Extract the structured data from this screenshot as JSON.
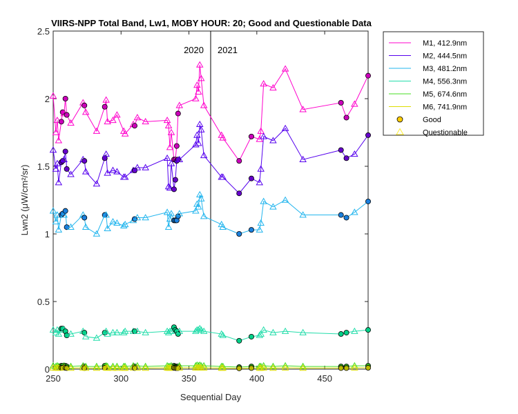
{
  "chart_data": {
    "type": "line",
    "title": "VIIRS-NPP Total Band, Lw1, MOBY HOUR: 20;  Good and Questionable Data",
    "xlabel": "Sequential Day",
    "ylabel": "Lwn2 (μW/cm²/sr)",
    "xlim": [
      250,
      482
    ],
    "ylim": [
      0,
      2.5
    ],
    "xticks": [
      250,
      300,
      350,
      400,
      450
    ],
    "yticks": [
      0,
      0.5,
      1,
      1.5,
      2,
      2.5
    ],
    "grid": false,
    "legend_position": "outside-top-right",
    "year_divider": {
      "x": 366,
      "labels": [
        "2020",
        "2021"
      ]
    },
    "x": [
      250,
      252,
      253,
      254,
      256,
      257,
      258,
      259,
      260,
      263,
      272,
      273,
      274,
      282,
      288,
      289,
      290,
      294,
      297,
      302,
      303,
      309,
      310,
      312,
      318,
      334,
      335,
      336,
      337,
      339,
      340,
      341,
      342,
      343,
      355,
      356,
      357,
      358,
      359,
      361,
      374,
      375,
      387,
      396,
      402,
      403,
      405,
      412,
      421,
      434,
      462,
      466,
      472,
      482
    ],
    "quality": [
      "Q",
      "Q",
      "Q",
      "Q",
      "G",
      "G",
      "Q",
      "G",
      "G",
      "Q",
      "Q",
      "G",
      "Q",
      "Q",
      "G",
      "Q",
      "Q",
      "Q",
      "Q",
      "Q",
      "Q",
      "Q",
      "G",
      "Q",
      "Q",
      "Q",
      "Q",
      "Q",
      "Q",
      "G",
      "G",
      "G",
      "G",
      "Q",
      "Q",
      "Q",
      "Q",
      "Q",
      "Q",
      "Q",
      "Q",
      "Q",
      "G",
      "G",
      "Q",
      "Q",
      "Q",
      "Q",
      "Q",
      "Q",
      "G",
      "G",
      "Q",
      "G"
    ],
    "series": [
      {
        "name": "M1, 412.9nm",
        "color": "#ff00cc",
        "good_color": "#cc00bb",
        "values": [
          2.02,
          1.75,
          1.84,
          1.69,
          1.83,
          1.9,
          1.89,
          2.0,
          1.88,
          1.82,
          1.97,
          1.95,
          1.9,
          1.76,
          1.94,
          1.99,
          1.83,
          1.84,
          1.88,
          1.76,
          1.74,
          1.81,
          1.8,
          1.86,
          1.83,
          1.84,
          1.8,
          1.64,
          1.75,
          1.55,
          1.55,
          1.65,
          1.89,
          1.95,
          2.0,
          2.1,
          2.05,
          2.25,
          2.15,
          1.95,
          1.73,
          1.71,
          1.54,
          1.72,
          1.7,
          1.76,
          2.11,
          2.08,
          2.22,
          1.92,
          1.97,
          1.86,
          1.96,
          2.17
        ]
      },
      {
        "name": "M2, 444.5nm",
        "color": "#5500ee",
        "good_color": "#6600cc",
        "values": [
          1.62,
          1.48,
          1.52,
          1.38,
          1.53,
          1.54,
          1.55,
          1.61,
          1.48,
          1.44,
          1.55,
          1.54,
          1.46,
          1.37,
          1.56,
          1.59,
          1.45,
          1.47,
          1.46,
          1.42,
          1.42,
          1.47,
          1.47,
          1.49,
          1.49,
          1.56,
          1.35,
          1.34,
          1.52,
          1.33,
          1.4,
          1.54,
          1.55,
          1.55,
          1.66,
          1.73,
          1.67,
          1.81,
          1.77,
          1.58,
          1.42,
          1.42,
          1.3,
          1.41,
          1.38,
          1.48,
          1.72,
          1.69,
          1.78,
          1.55,
          1.62,
          1.56,
          1.59,
          1.73
        ]
      },
      {
        "name": "M3, 481.2nm",
        "color": "#22b5ee",
        "good_color": "#1a7fdd",
        "values": [
          1.17,
          1.09,
          1.14,
          1.03,
          1.14,
          1.15,
          1.14,
          1.17,
          1.05,
          1.05,
          1.14,
          1.12,
          1.05,
          1.0,
          1.14,
          1.14,
          1.04,
          1.09,
          1.08,
          1.06,
          1.07,
          1.1,
          1.11,
          1.12,
          1.12,
          1.16,
          1.05,
          1.11,
          1.15,
          1.1,
          1.1,
          1.1,
          1.13,
          1.15,
          1.17,
          1.22,
          1.2,
          1.29,
          1.26,
          1.13,
          1.07,
          1.05,
          1.0,
          1.03,
          1.03,
          1.08,
          1.24,
          1.2,
          1.25,
          1.14,
          1.14,
          1.12,
          1.16,
          1.24
        ]
      },
      {
        "name": "M4, 556.3nm",
        "color": "#22ddaa",
        "good_color": "#00d188",
        "values": [
          0.29,
          0.27,
          0.29,
          0.26,
          0.3,
          0.3,
          0.29,
          0.28,
          0.25,
          0.26,
          0.28,
          0.27,
          0.24,
          0.23,
          0.27,
          0.28,
          0.26,
          0.27,
          0.27,
          0.27,
          0.28,
          0.28,
          0.28,
          0.28,
          0.27,
          0.28,
          0.27,
          0.28,
          0.28,
          0.31,
          0.29,
          0.28,
          0.26,
          0.28,
          0.28,
          0.29,
          0.29,
          0.3,
          0.29,
          0.28,
          0.26,
          0.25,
          0.21,
          0.24,
          0.25,
          0.26,
          0.29,
          0.27,
          0.28,
          0.27,
          0.26,
          0.27,
          0.28,
          0.29
        ]
      },
      {
        "name": "M5, 674.6nm",
        "color": "#44dd22",
        "good_color": "#33bb22",
        "values": [
          0.025,
          0.02,
          0.025,
          0.02,
          0.025,
          0.025,
          0.025,
          0.025,
          0.02,
          0.02,
          0.025,
          0.02,
          0.02,
          0.02,
          0.025,
          0.025,
          0.02,
          0.02,
          0.02,
          0.02,
          0.02,
          0.025,
          0.02,
          0.025,
          0.02,
          0.025,
          0.02,
          0.02,
          0.025,
          0.025,
          0.02,
          0.02,
          0.02,
          0.025,
          0.025,
          0.03,
          0.025,
          0.03,
          0.025,
          0.025,
          0.02,
          0.02,
          0.015,
          0.02,
          0.02,
          0.02,
          0.025,
          0.02,
          0.025,
          0.02,
          0.02,
          0.02,
          0.025,
          0.025
        ]
      },
      {
        "name": "M6, 741.9nm",
        "color": "#dddd00",
        "good_color": "#bbbb00",
        "values": [
          0.01,
          0.008,
          0.01,
          0.008,
          0.01,
          0.01,
          0.01,
          0.01,
          0.008,
          0.008,
          0.01,
          0.008,
          0.008,
          0.008,
          0.01,
          0.01,
          0.008,
          0.008,
          0.008,
          0.008,
          0.008,
          0.01,
          0.008,
          0.01,
          0.008,
          0.01,
          0.008,
          0.008,
          0.01,
          0.01,
          0.008,
          0.008,
          0.008,
          0.01,
          0.01,
          0.012,
          0.01,
          0.012,
          0.01,
          0.01,
          0.008,
          0.008,
          0.006,
          0.008,
          0.008,
          0.008,
          0.01,
          0.008,
          0.01,
          0.008,
          0.008,
          0.008,
          0.01,
          0.01
        ]
      }
    ],
    "legend": {
      "good_label": "Good",
      "questionable_label": "Questionable",
      "good_color": "#ffcc00",
      "questionable_color": "#ffee33"
    }
  }
}
